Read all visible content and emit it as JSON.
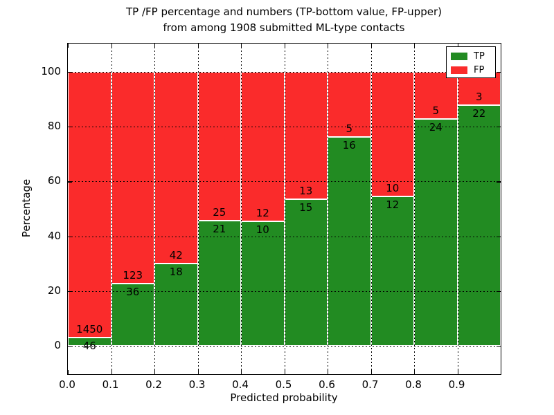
{
  "chart_data": {
    "type": "bar",
    "stacked": true,
    "title_line1": "TP /FP percentage and numbers (TP-bottom value, FP-upper)",
    "title_line2": "from among 1908 submitted ML-type contacts",
    "xlabel": "Predicted probability",
    "ylabel": "Percentage",
    "x_ticks": [
      "0.0",
      "0.1",
      "0.2",
      "0.3",
      "0.4",
      "0.5",
      "0.6",
      "0.7",
      "0.8",
      "0.9"
    ],
    "y_ticks": [
      0,
      20,
      40,
      60,
      80,
      100
    ],
    "xlim": [
      0.0,
      1.0
    ],
    "ylim": [
      -10.4,
      110.4
    ],
    "grid": "dotted black, drawn above bars",
    "legend_position": "upper right",
    "colors": {
      "tp": "#228b22",
      "fp": "#fa2b2b",
      "bar_edge": "#ffffff"
    },
    "legend": [
      {
        "label": "TP",
        "color": "#228b22"
      },
      {
        "label": "FP",
        "color": "#fa2b2b"
      }
    ],
    "bars": [
      {
        "x0": 0.0,
        "x1": 0.1,
        "tp": 46,
        "fp": 1450
      },
      {
        "x0": 0.1,
        "x1": 0.2,
        "tp": 36,
        "fp": 123
      },
      {
        "x0": 0.2,
        "x1": 0.3,
        "tp": 18,
        "fp": 42
      },
      {
        "x0": 0.3,
        "x1": 0.4,
        "tp": 21,
        "fp": 25
      },
      {
        "x0": 0.4,
        "x1": 0.5,
        "tp": 10,
        "fp": 12
      },
      {
        "x0": 0.5,
        "x1": 0.6,
        "tp": 15,
        "fp": 13
      },
      {
        "x0": 0.6,
        "x1": 0.7,
        "tp": 16,
        "fp": 5
      },
      {
        "x0": 0.7,
        "x1": 0.8,
        "tp": 12,
        "fp": 10
      },
      {
        "x0": 0.8,
        "x1": 0.9,
        "tp": 24,
        "fp": 5
      },
      {
        "x0": 0.9,
        "x1": 1.0,
        "tp": 22,
        "fp": 3
      }
    ],
    "total_note": "percentages = tp/(tp+fp)*100 per bin"
  }
}
